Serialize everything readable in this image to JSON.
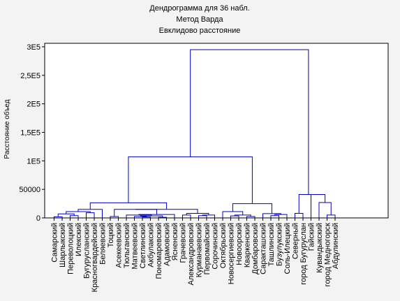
{
  "chart_data": {
    "type": "dendrogram",
    "title_lines": [
      "Дендрограмма для 36 набл.",
      "Метод Варда",
      "Евклидово расстояние"
    ],
    "ylabel": "Расстояние объед",
    "xlabel": "",
    "ylim": [
      0,
      300000
    ],
    "y_ticks": [
      0,
      50000,
      100000,
      150000,
      200000,
      250000,
      300000
    ],
    "y_tick_labels": [
      "0",
      "50000",
      "1E5",
      "1,5E5",
      "2E5",
      "2,5E5",
      "3E5"
    ],
    "grid": false,
    "line_color": "#0000cc",
    "leaves": [
      "Самарский",
      "Шарлыкский",
      "Переволоцкий",
      "Илекский",
      "Бугурусланский",
      "Красногвардейский",
      "Беляевский",
      "Тоцкий",
      "Асекеевский",
      "Тюльганский",
      "Матвеевский",
      "Светлинский",
      "Акбулакский",
      "Пономаревский",
      "Адамовский",
      "Ясненский",
      "Грачевский",
      "Александровский",
      "Курманаевский",
      "Первомайский",
      "Сорочинский",
      "Октябрьский",
      "Новосергиевский",
      "Новоорский",
      "Кваркенский",
      "Домбаровский",
      "Саракташский",
      "Ташлинский",
      "Бузулукский",
      "Соль-Илецкий",
      "Северный",
      "город Бугуруслан",
      "Гайский",
      "Кувандыкский",
      "город Медногорск",
      "Абдулинский"
    ],
    "merges": [
      {
        "id": "n1",
        "left": 0,
        "right": 1,
        "height": 2000
      },
      {
        "id": "n2",
        "left": 2,
        "right": 3,
        "height": 4000
      },
      {
        "id": "n3",
        "left": "n1",
        "right": "n2",
        "height": 7000
      },
      {
        "id": "n4",
        "left": 4,
        "right": 5,
        "height": 9000
      },
      {
        "id": "n5",
        "left": "n3",
        "right": "n4",
        "height": 11000
      },
      {
        "id": "n6",
        "left": "n5",
        "right": 6,
        "height": 15000
      },
      {
        "id": "n7",
        "left": 7,
        "right": 8,
        "height": 2500
      },
      {
        "id": "n8",
        "left": 11,
        "right": 12,
        "height": 1500
      },
      {
        "id": "n9",
        "left": 10,
        "right": "n8",
        "height": 2500
      },
      {
        "id": "n10",
        "left": 13,
        "right": 14,
        "height": 1000
      },
      {
        "id": "n11",
        "left": "n9",
        "right": "n10",
        "height": 3500
      },
      {
        "id": "n12",
        "left": 9,
        "right": "n11",
        "height": 5000
      },
      {
        "id": "n13",
        "left": "n12",
        "right": 15,
        "height": 6000
      },
      {
        "id": "n14",
        "left": "n7",
        "right": "n13",
        "height": 15000
      },
      {
        "id": "n15",
        "left": 16,
        "right": 17,
        "height": 5000
      },
      {
        "id": "n16",
        "left": 18,
        "right": 19,
        "height": 4000
      },
      {
        "id": "n17",
        "left": "n16",
        "right": 20,
        "height": 5000
      },
      {
        "id": "n18",
        "left": "n15",
        "right": "n17",
        "height": 8000
      },
      {
        "id": "n19",
        "left": "n14",
        "right": "n18",
        "height": 15000
      },
      {
        "id": "n20",
        "left": "n6",
        "right": "n19",
        "height": 26500
      },
      {
        "id": "n21",
        "left": 22,
        "right": 23,
        "height": 3500
      },
      {
        "id": "n22",
        "left": 24,
        "right": 25,
        "height": 2500
      },
      {
        "id": "n23",
        "left": "n21",
        "right": "n22",
        "height": 5000
      },
      {
        "id": "n24",
        "left": 21,
        "right": "n23",
        "height": 11000
      },
      {
        "id": "n25",
        "left": 27,
        "right": 28,
        "height": 4000
      },
      {
        "id": "n26",
        "left": "n25",
        "right": 29,
        "height": 6000
      },
      {
        "id": "n27",
        "left": 26,
        "right": "n26",
        "height": 7500
      },
      {
        "id": "n28",
        "left": "n24",
        "right": "n27",
        "height": 25000
      },
      {
        "id": "n29",
        "left": "n20",
        "right": "n28",
        "height": 107000
      },
      {
        "id": "n30",
        "left": 30,
        "right": 31,
        "height": 8000
      },
      {
        "id": "n31",
        "left": 34,
        "right": 35,
        "height": 5000
      },
      {
        "id": "n32",
        "left": 33,
        "right": "n31",
        "height": 27000
      },
      {
        "id": "n33",
        "left": 32,
        "right": "n32",
        "height": 41000
      },
      {
        "id": "n34",
        "left": "n30",
        "right": "n33",
        "height": 41000
      },
      {
        "id": "n35",
        "left": "n29",
        "right": "n34",
        "height": 295000
      }
    ]
  }
}
